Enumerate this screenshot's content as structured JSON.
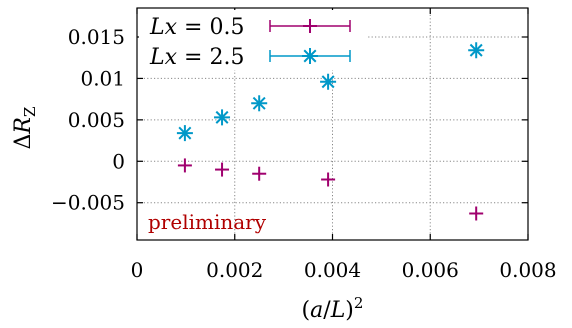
{
  "chart_data": {
    "type": "scatter",
    "xlabel": "(a/L)²",
    "ylabel": "ΔR_Z",
    "xlim": [
      0,
      0.008
    ],
    "ylim": [
      -0.0095,
      0.0185
    ],
    "xticks": [
      0,
      0.002,
      0.004,
      0.006,
      0.008
    ],
    "xtick_labels": [
      "0",
      "0.002",
      "0.004",
      "0.006",
      "0.008"
    ],
    "yticks": [
      -0.005,
      0,
      0.005,
      0.01,
      0.015
    ],
    "ytick_labels": [
      "−0.005",
      "0",
      "0.005",
      "0.01",
      "0.015"
    ],
    "grid": "dotted, major ticks",
    "legend_position": "top-left",
    "annotation": {
      "text": "preliminary",
      "color": "#b00000"
    },
    "series": [
      {
        "name": "Lx = 0.5",
        "marker": "plus",
        "color": "#a0006e",
        "x": [
          0.00098,
          0.00174,
          0.0025,
          0.00391,
          0.00694
        ],
        "y": [
          -0.0005,
          -0.001,
          -0.0015,
          -0.0022,
          -0.0063
        ],
        "xerr": [
          3e-05,
          3e-05,
          3e-05,
          3e-05,
          5e-05
        ],
        "yerr": [
          0.0003,
          0.0003,
          0.0003,
          0.0003,
          0.0003
        ]
      },
      {
        "name": "Lx = 2.5",
        "marker": "star",
        "color": "#0098c8",
        "x": [
          0.00098,
          0.00174,
          0.0025,
          0.00391,
          0.00694
        ],
        "y": [
          0.0034,
          0.0053,
          0.007,
          0.0096,
          0.0134
        ],
        "xerr": [
          2e-05,
          2e-05,
          2e-05,
          2e-05,
          2e-05
        ],
        "yerr": [
          0.0002,
          0.0002,
          0.0002,
          0.0002,
          0.0002
        ]
      }
    ]
  },
  "legend": {
    "entries": [
      {
        "label_var": "Lx",
        "label_eq": " = 0.5"
      },
      {
        "label_var": "Lx",
        "label_eq": " = 2.5"
      }
    ]
  }
}
